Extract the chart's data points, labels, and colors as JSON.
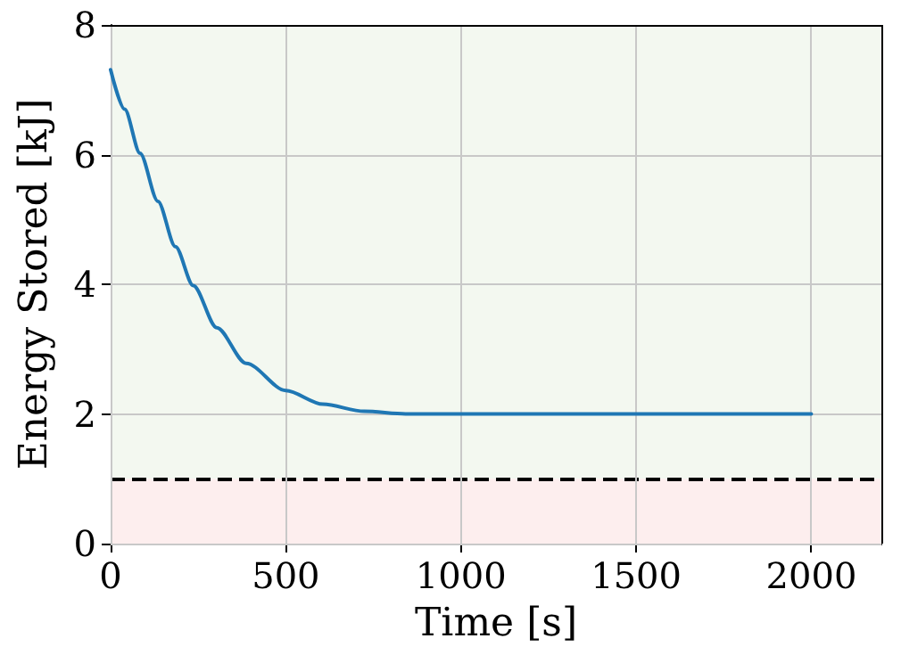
{
  "chart_data": {
    "type": "line",
    "xlabel": "Time [s]",
    "ylabel": "Energy Stored [kJ]",
    "x": [
      0,
      40,
      84,
      135,
      185,
      236,
      303,
      387,
      500,
      606,
      724,
      842,
      1000,
      1500,
      2000
    ],
    "series": [
      {
        "color": "#1f77b4",
        "values": [
          7.31,
          6.7,
          6.02,
          5.28,
          4.58,
          3.98,
          3.33,
          2.78,
          2.36,
          2.15,
          2.04,
          2.0,
          2.0,
          2.0,
          2.0
        ]
      }
    ],
    "xlim": [
      0,
      2200
    ],
    "xticks": [
      0,
      500,
      1000,
      1500,
      2000
    ],
    "ylim": [
      0,
      8
    ],
    "yticks": [
      0,
      2,
      4,
      6,
      8
    ],
    "grid": true,
    "marker": "none",
    "line_style": "solid",
    "ref_lines": [
      {
        "axis": "y",
        "value": 1,
        "color": "#000000",
        "line_style": "dashed"
      }
    ],
    "bands": [
      {
        "axis": "y",
        "from": 1,
        "to": 8,
        "color": "#f3f8f0"
      },
      {
        "axis": "y",
        "from": 0,
        "to": 1,
        "color": "#fdeeee"
      }
    ]
  }
}
